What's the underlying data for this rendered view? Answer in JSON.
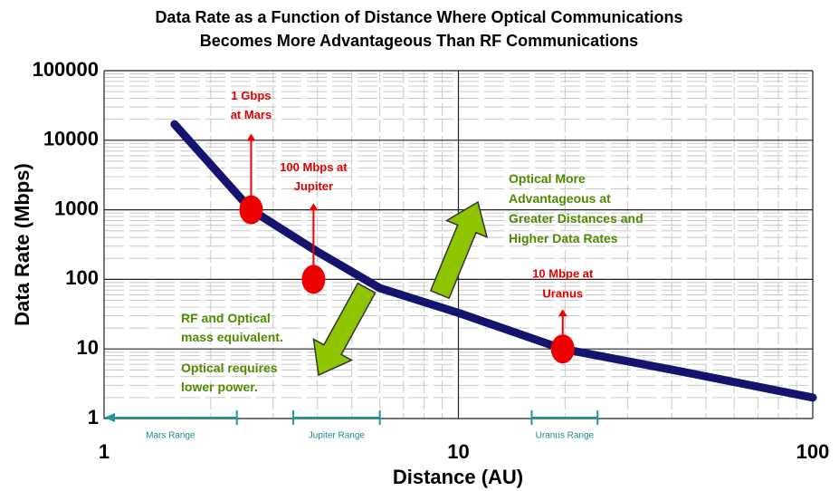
{
  "chart_data": {
    "type": "line",
    "title": [
      "Data Rate as a Function of Distance Where Optical Communications",
      "Becomes More Advantageous Than RF Communications"
    ],
    "x_label": "Distance (AU)",
    "y_label": "Data Rate (Mbps)",
    "log_x": true,
    "log_y": true,
    "grid": true,
    "minor_grid": true,
    "xlim": [
      1,
      100
    ],
    "xticks": [
      1,
      10,
      100
    ],
    "ylim": [
      1,
      100000
    ],
    "yticks": [
      1,
      10,
      100,
      1000,
      10000,
      100000
    ],
    "curve": {
      "color": "#14146e",
      "x": [
        1.58,
        2.6,
        4,
        6,
        10,
        19.7,
        42,
        100
      ],
      "y": [
        17000,
        1000,
        250,
        75,
        33,
        10,
        4.8,
        2
      ]
    },
    "points": [
      {
        "lines": [
          "1 Gbps",
          "at Mars"
        ],
        "x": 2.6,
        "y": 1000
      },
      {
        "lines": [
          "100 Mbps at",
          "Jupiter"
        ],
        "x": 3.9,
        "y": 100
      },
      {
        "lines": [
          "10 Mbpe at",
          "Uranus"
        ],
        "x": 19.7,
        "y": 10
      }
    ],
    "point_color": "#ee0000",
    "ranges": [
      {
        "label": "Mars Range",
        "start": 1,
        "end": 2.37
      },
      {
        "label": "Jupiter Range",
        "start": 3.42,
        "end": 6.0
      },
      {
        "label": "Uranus Range",
        "start": 16.1,
        "end": 24.7
      }
    ],
    "range_color": "#1a9a9a",
    "annotations": [
      {
        "lines": [
          "Optical More",
          "Advantageous at",
          "Greater Distances and",
          "Higher Data Rates"
        ]
      },
      {
        "lines": [
          "RF and Optical",
          "mass equivalent."
        ]
      },
      {
        "lines": [
          "Optical requires",
          "lower power."
        ]
      }
    ]
  }
}
